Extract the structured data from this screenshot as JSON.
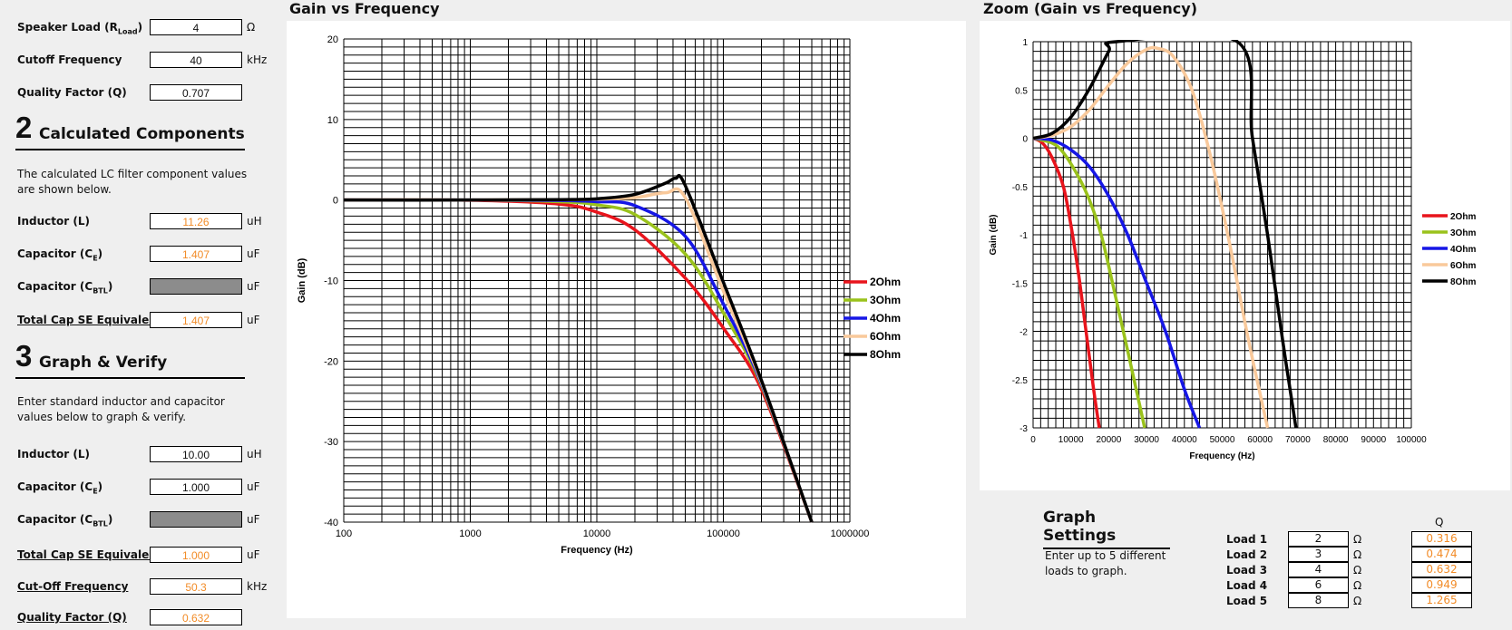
{
  "inputs": {
    "speaker_load": {
      "label": "Speaker Load (R",
      "sub": "Load",
      "label_end": ")",
      "value": "4",
      "unit": "Ω"
    },
    "cutoff_frequency": {
      "label": "Cutoff Frequency",
      "value": "40",
      "unit": "kHz"
    },
    "quality_factor": {
      "label": "Quality Factor (Q)",
      "value": "0.707"
    }
  },
  "section2": {
    "number": "2",
    "title": "Calculated Components",
    "description": "The calculated LC filter component values are shown below.",
    "inductor": {
      "label": "Inductor (L)",
      "value": "11.26",
      "unit": "uH"
    },
    "capacitor_se": {
      "label": "Capacitor (C",
      "sub": "E",
      "label_end": ")",
      "value": "1.407",
      "unit": "uF"
    },
    "capacitor_btl": {
      "label": "Capacitor (C",
      "sub": "BTL",
      "label_end": ")",
      "value": "",
      "unit": "uF"
    },
    "total_cap": {
      "label": "Total Cap SE Equivalent",
      "value": "1.407",
      "unit": "uF"
    }
  },
  "section3": {
    "number": "3",
    "title": "Graph & Verify",
    "description": "Enter standard inductor and capacitor values below to graph & verify.",
    "inductor": {
      "label": "Inductor (L)",
      "value": "10.00",
      "unit": "uH"
    },
    "capacitor_se": {
      "label": "Capacitor (C",
      "sub": "E",
      "label_end": ")",
      "value": "1.000",
      "unit": "uF"
    },
    "capacitor_btl": {
      "label": "Capacitor (C",
      "sub": "BTL",
      "label_end": ")",
      "value": "",
      "unit": "uF"
    },
    "total_cap": {
      "label": "Total Cap SE Equivalent",
      "value": "1.000",
      "unit": "uF"
    },
    "cutoff": {
      "label": "Cut-Off Frequency",
      "value": "50.3",
      "unit": "kHz"
    },
    "quality": {
      "label": "Quality Factor (Q)",
      "value": "0.632"
    }
  },
  "graph_settings": {
    "title": "Graph Settings",
    "description": "Enter up to 5 different loads to graph.",
    "q_header": "Q",
    "loads": [
      {
        "name": "Load 1",
        "value": "2",
        "unit": "Ω",
        "q": "0.316"
      },
      {
        "name": "Load 2",
        "value": "3",
        "unit": "Ω",
        "q": "0.474"
      },
      {
        "name": "Load 3",
        "value": "4",
        "unit": "Ω",
        "q": "0.632"
      },
      {
        "name": "Load 4",
        "value": "6",
        "unit": "Ω",
        "q": "0.949"
      },
      {
        "name": "Load 5",
        "value": "8",
        "unit": "Ω",
        "q": "1.265"
      }
    ]
  },
  "colors": {
    "accent": "#f28c28",
    "s2": "#e8141c",
    "s3": "#9ac21b",
    "s4": "#1616e6",
    "s6": "#f9c99b",
    "s8": "#000000"
  },
  "chart_data": [
    {
      "type": "line",
      "title": "Gain vs Frequency",
      "xlabel": "Frequency (Hz)",
      "ylabel": "Gain (dB)",
      "x_scale": "log",
      "xlim": [
        100,
        1000000
      ],
      "ylim": [
        -40,
        20
      ],
      "x_ticks": [
        "100",
        "1000",
        "10000",
        "100000",
        "1000000"
      ],
      "y_ticks": [
        "20",
        "10",
        "0",
        "-10",
        "-20",
        "-30",
        "-40"
      ],
      "grid": true,
      "legend": "right",
      "series": [
        {
          "name": "2Ohm",
          "color": "#e8141c",
          "x": [
            100,
            1000,
            5000,
            10000,
            20000,
            50000,
            100000,
            200000,
            500000
          ],
          "y": [
            0,
            -0.03,
            -0.5,
            -1.5,
            -3.7,
            -9.7,
            -15.9,
            -23.5,
            -40
          ]
        },
        {
          "name": "3Ohm",
          "color": "#9ac21b",
          "x": [
            100,
            1000,
            5000,
            10000,
            20000,
            50000,
            100000,
            200000,
            500000
          ],
          "y": [
            0,
            0,
            -0.2,
            -0.6,
            -1.8,
            -6.7,
            -14.0,
            -23.0,
            -40
          ]
        },
        {
          "name": "4Ohm",
          "color": "#1616e6",
          "x": [
            100,
            1000,
            5000,
            10000,
            20000,
            50000,
            100000,
            200000,
            500000
          ],
          "y": [
            0,
            0,
            -0.05,
            -0.2,
            -0.7,
            -4.5,
            -12.9,
            -22.8,
            -40
          ]
        },
        {
          "name": "6Ohm",
          "color": "#f9c99b",
          "x": [
            100,
            1000,
            5000,
            10000,
            20000,
            35000,
            50000,
            100000,
            200000,
            500000
          ],
          "y": [
            0,
            0,
            0.03,
            0.1,
            0.3,
            0.9,
            0.3,
            -11.3,
            -22.6,
            -40
          ]
        },
        {
          "name": "8Ohm",
          "color": "#000000",
          "x": [
            100,
            1000,
            5000,
            10000,
            20000,
            35000,
            42000,
            50000,
            100000,
            200000,
            500000
          ],
          "y": [
            0,
            0,
            0.05,
            0.15,
            0.7,
            2.1,
            2.7,
            1.8,
            -10.2,
            -22.4,
            -40
          ]
        }
      ]
    },
    {
      "type": "line",
      "title": "Zoom (Gain vs Frequency)",
      "xlabel": "Frequency (Hz)",
      "ylabel": "Gain (dB)",
      "xlim": [
        0,
        100000
      ],
      "ylim": [
        -3,
        1
      ],
      "x_ticks": [
        "0",
        "10000",
        "20000",
        "30000",
        "40000",
        "50000",
        "60000",
        "70000",
        "80000",
        "90000",
        "100000"
      ],
      "y_ticks": [
        "1",
        "0.5",
        "0",
        "-0.5",
        "-1",
        "-1.5",
        "-2",
        "-2.5",
        "-3"
      ],
      "grid": true,
      "legend": "right",
      "series": [
        {
          "name": "2Ohm",
          "color": "#e8141c",
          "x": [
            0,
            2500,
            5000,
            8000,
            10000,
            12000,
            14000,
            16000,
            17500
          ],
          "y": [
            0,
            -0.05,
            -0.2,
            -0.5,
            -0.9,
            -1.4,
            -2.0,
            -2.6,
            -3.0
          ]
        },
        {
          "name": "3Ohm",
          "color": "#9ac21b",
          "x": [
            0,
            5000,
            8000,
            12000,
            15000,
            18000,
            21000,
            25000,
            29500
          ],
          "y": [
            0,
            -0.05,
            -0.15,
            -0.4,
            -0.65,
            -1.0,
            -1.5,
            -2.2,
            -3.0
          ]
        },
        {
          "name": "4Ohm",
          "color": "#1616e6",
          "x": [
            0,
            5000,
            10000,
            15000,
            20000,
            25000,
            30000,
            35000,
            40000,
            44000
          ],
          "y": [
            0,
            -0.02,
            -0.12,
            -0.3,
            -0.6,
            -1.0,
            -1.5,
            -2.0,
            -2.6,
            -3.0
          ]
        },
        {
          "name": "6Ohm",
          "color": "#f9c99b",
          "x": [
            0,
            5000,
            10000,
            15000,
            20000,
            25000,
            30000,
            33000,
            37000,
            42000,
            47000,
            52000,
            57000,
            62000
          ],
          "y": [
            0,
            0.03,
            0.12,
            0.3,
            0.55,
            0.78,
            0.92,
            0.93,
            0.85,
            0.5,
            -0.2,
            -1.1,
            -2.1,
            -3.0
          ]
        },
        {
          "name": "8Ohm",
          "color": "#000000",
          "x": [
            0,
            5000,
            10000,
            15000,
            20000,
            22000,
            54000,
            58000,
            62000,
            66000,
            69500
          ],
          "y": [
            0,
            0.05,
            0.22,
            0.52,
            0.9,
            1.0,
            1.0,
            0.0,
            -1.0,
            -2.1,
            -3.0
          ]
        }
      ]
    }
  ]
}
